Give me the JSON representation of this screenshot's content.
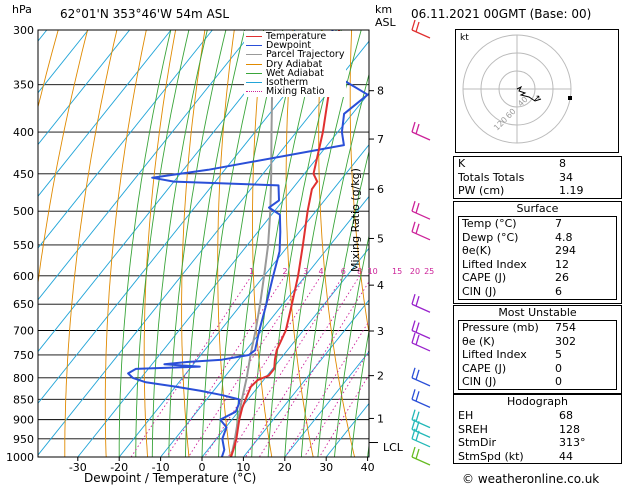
{
  "header": {
    "hpa_label": "hPa",
    "location": "62°01'N  353°46'W  54m  ASL",
    "km_label": "km",
    "asl_label": "ASL",
    "datetime": "06.11.2021  00GMT  (Base: 00)"
  },
  "axes": {
    "xlabel": "Dewpoint / Temperature (°C)",
    "y2label": "Mixing Ratio (g/kg)",
    "lcl_label": "LCL",
    "footer": "© weatheronline.co.uk"
  },
  "legend": [
    {
      "label": "Temperature",
      "color": "#e03030"
    },
    {
      "label": "Dewpoint",
      "color": "#2a4fd8"
    },
    {
      "label": "Parcel Trajectory",
      "color": "#999999"
    },
    {
      "label": "Dry Adiabat",
      "color": "#e08a00"
    },
    {
      "label": "Wet Adiabat",
      "color": "#3aa53a"
    },
    {
      "label": "Isotherm",
      "color": "#22a5d8"
    },
    {
      "label": "Mixing Ratio",
      "color": "#cc2299"
    }
  ],
  "hodograph": {
    "label": "kt",
    "ring_labels": [
      "40",
      "60",
      "120"
    ]
  },
  "chart_data": {
    "type": "skew-t",
    "pressure_levels": [
      300,
      350,
      400,
      450,
      500,
      550,
      600,
      650,
      700,
      750,
      800,
      850,
      900,
      950,
      1000
    ],
    "pressure_ticks": [
      "300",
      "350",
      "400",
      "450",
      "500",
      "550",
      "600",
      "650",
      "700",
      "750",
      "800",
      "850",
      "900",
      "950",
      "1000"
    ],
    "temperature_ticks": [
      -30,
      -20,
      -10,
      0,
      10,
      20,
      30,
      40
    ],
    "temperature_tick_labels": [
      "-30",
      "-20",
      "-10",
      "0",
      "10",
      "20",
      "30",
      "40"
    ],
    "xlim": [
      -40,
      40
    ],
    "height_km_ticks": [
      {
        "label": "8",
        "pressure": 356
      },
      {
        "label": "7",
        "pressure": 408
      },
      {
        "label": "6",
        "pressure": 470
      },
      {
        "label": "5",
        "pressure": 540
      },
      {
        "label": "4",
        "pressure": 616
      },
      {
        "label": "3",
        "pressure": 701
      },
      {
        "label": "2",
        "pressure": 795
      },
      {
        "label": "1",
        "pressure": 897
      }
    ],
    "lcl_pressure": 960,
    "mixing_ratio_labels": [
      "1",
      "2",
      "3",
      "4",
      "6",
      "8",
      "10",
      "15",
      "20",
      "25"
    ],
    "mixing_ratio_values": [
      1,
      2,
      3,
      4,
      6,
      8,
      10,
      15,
      20,
      25
    ],
    "temperature_profile": [
      {
        "p": 1000,
        "t": 7.0
      },
      {
        "p": 980,
        "t": 6.2
      },
      {
        "p": 950,
        "t": 4.8
      },
      {
        "p": 920,
        "t": 3.0
      },
      {
        "p": 900,
        "t": 1.8
      },
      {
        "p": 870,
        "t": 0.2
      },
      {
        "p": 850,
        "t": -0.6
      },
      {
        "p": 820,
        "t": -1.8
      },
      {
        "p": 805,
        "t": -1.4
      },
      {
        "p": 795,
        "t": 0.4
      },
      {
        "p": 780,
        "t": 0.4
      },
      {
        "p": 760,
        "t": -1.2
      },
      {
        "p": 740,
        "t": -2.6
      },
      {
        "p": 700,
        "t": -4.2
      },
      {
        "p": 650,
        "t": -7.8
      },
      {
        "p": 600,
        "t": -11.8
      },
      {
        "p": 550,
        "t": -16.6
      },
      {
        "p": 500,
        "t": -22.0
      },
      {
        "p": 470,
        "t": -25.2
      },
      {
        "p": 460,
        "t": -25.4
      },
      {
        "p": 450,
        "t": -27.8
      },
      {
        "p": 400,
        "t": -33.6
      },
      {
        "p": 350,
        "t": -41.0
      },
      {
        "p": 300,
        "t": -49.4
      }
    ],
    "dewpoint_profile": [
      {
        "p": 1000,
        "t": 4.8
      },
      {
        "p": 980,
        "t": 4.0
      },
      {
        "p": 950,
        "t": 1.4
      },
      {
        "p": 920,
        "t": 0.2
      },
      {
        "p": 900,
        "t": -2.8
      },
      {
        "p": 880,
        "t": -0.6
      },
      {
        "p": 860,
        "t": -1.4
      },
      {
        "p": 850,
        "t": -2.2
      },
      {
        "p": 840,
        "t": -7.0
      },
      {
        "p": 830,
        "t": -13.0
      },
      {
        "p": 820,
        "t": -20.0
      },
      {
        "p": 810,
        "t": -28.0
      },
      {
        "p": 800,
        "t": -32.0
      },
      {
        "p": 790,
        "t": -34.0
      },
      {
        "p": 780,
        "t": -33.0
      },
      {
        "p": 775,
        "t": -18.0
      },
      {
        "p": 770,
        "t": -27.0
      },
      {
        "p": 765,
        "t": -22.0
      },
      {
        "p": 760,
        "t": -14.0
      },
      {
        "p": 750,
        "t": -8.4
      },
      {
        "p": 740,
        "t": -7.8
      },
      {
        "p": 700,
        "t": -10.6
      },
      {
        "p": 650,
        "t": -14.0
      },
      {
        "p": 600,
        "t": -17.8
      },
      {
        "p": 560,
        "t": -21.0
      },
      {
        "p": 530,
        "t": -24.6
      },
      {
        "p": 505,
        "t": -28.0
      },
      {
        "p": 495,
        "t": -32.0
      },
      {
        "p": 485,
        "t": -31.0
      },
      {
        "p": 465,
        "t": -34.0
      },
      {
        "p": 460,
        "t": -60.0
      },
      {
        "p": 455,
        "t": -66.0
      },
      {
        "p": 445,
        "t": -54.0
      },
      {
        "p": 415,
        "t": -26.0
      },
      {
        "p": 400,
        "t": -29.0
      },
      {
        "p": 380,
        "t": -32.0
      },
      {
        "p": 360,
        "t": -30.0
      },
      {
        "p": 345,
        "t": -39.0
      },
      {
        "p": 330,
        "t": -45.0
      },
      {
        "p": 300,
        "t": -51.0
      }
    ],
    "parcel_profile": [
      {
        "p": 1000,
        "t": 7.0
      },
      {
        "p": 960,
        "t": 5.0
      },
      {
        "p": 900,
        "t": 1.5
      },
      {
        "p": 850,
        "t": -1.5
      },
      {
        "p": 800,
        "t": -4.5
      },
      {
        "p": 750,
        "t": -8.0
      },
      {
        "p": 700,
        "t": -11.5
      },
      {
        "p": 650,
        "t": -15.5
      },
      {
        "p": 600,
        "t": -20.0
      },
      {
        "p": 550,
        "t": -25.0
      },
      {
        "p": 500,
        "t": -31.0
      },
      {
        "p": 450,
        "t": -38.0
      },
      {
        "p": 400,
        "t": -46.0
      },
      {
        "p": 350,
        "t": -55.0
      },
      {
        "p": 300,
        "t": -65.0
      }
    ],
    "wind_barb_pressures": [
      300,
      400,
      500,
      530,
      650,
      700,
      725,
      800,
      850,
      900,
      925,
      950,
      1000
    ]
  },
  "indices": {
    "basic": [
      {
        "label": "K",
        "value": "8"
      },
      {
        "label": "Totals Totals",
        "value": "34"
      },
      {
        "label": "PW (cm)",
        "value": "1.19"
      }
    ],
    "surface": {
      "title": "Surface",
      "rows": [
        {
          "label": "Temp (°C)",
          "value": "7"
        },
        {
          "label": "Dewp (°C)",
          "value": "4.8"
        },
        {
          "label": "θe(K)",
          "value": "294"
        },
        {
          "label": "Lifted Index",
          "value": "12"
        },
        {
          "label": "CAPE (J)",
          "value": "26"
        },
        {
          "label": "CIN (J)",
          "value": "6"
        }
      ]
    },
    "most_unstable": {
      "title": "Most Unstable",
      "rows": [
        {
          "label": "Pressure (mb)",
          "value": "754"
        },
        {
          "label": "θe (K)",
          "value": "302"
        },
        {
          "label": "Lifted Index",
          "value": "5"
        },
        {
          "label": "CAPE (J)",
          "value": "0"
        },
        {
          "label": "CIN (J)",
          "value": "0"
        }
      ]
    },
    "hodograph": {
      "title": "Hodograph",
      "rows": [
        {
          "label": "EH",
          "value": "68"
        },
        {
          "label": "SREH",
          "value": "128"
        },
        {
          "label": "StmDir",
          "value": "313°"
        },
        {
          "label": "StmSpd (kt)",
          "value": "44"
        }
      ]
    }
  }
}
